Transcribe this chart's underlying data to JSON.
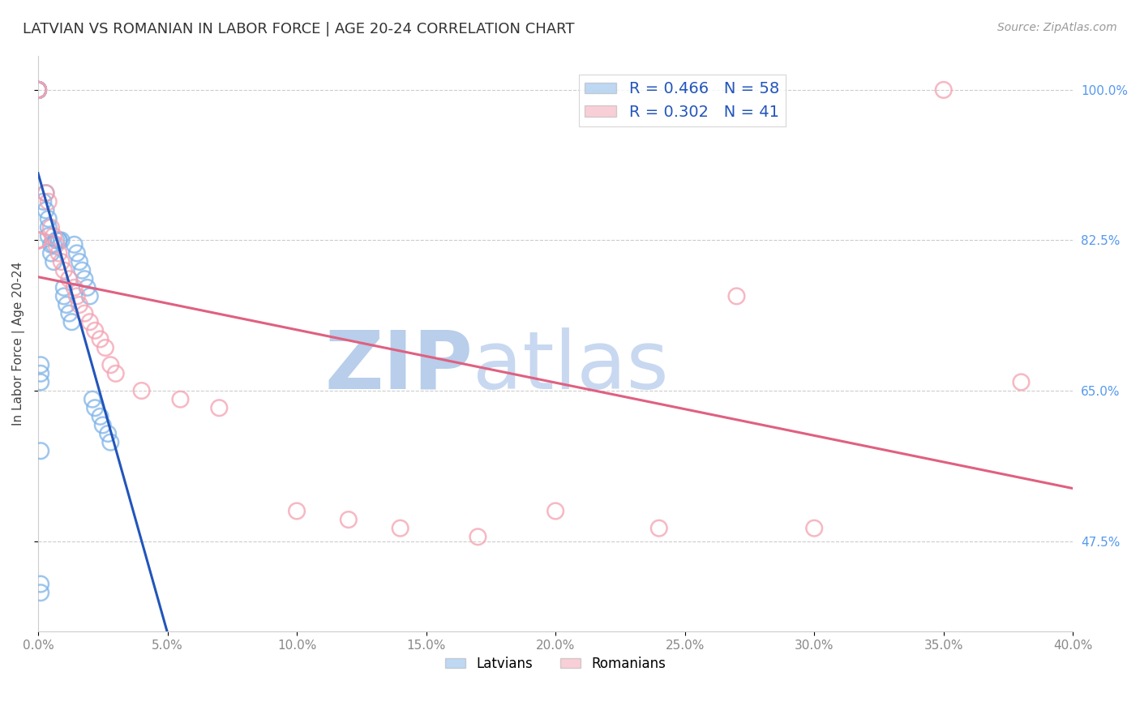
{
  "title": "LATVIAN VS ROMANIAN IN LABOR FORCE | AGE 20-24 CORRELATION CHART",
  "source_text": "Source: ZipAtlas.com",
  "ylabel": "In Labor Force | Age 20-24",
  "legend_labels": [
    "Latvians",
    "Romanians"
  ],
  "R_latvian": 0.466,
  "N_latvian": 58,
  "R_romanian": 0.302,
  "N_romanian": 41,
  "x_latvian": [
    0.0,
    0.0,
    0.0,
    0.0,
    0.0,
    0.0,
    0.0,
    0.0,
    0.0,
    0.0,
    0.0,
    0.0,
    0.0,
    0.0,
    0.0,
    0.0,
    0.0,
    0.0,
    0.0,
    0.0,
    0.002,
    0.003,
    0.003,
    0.004,
    0.004,
    0.004,
    0.005,
    0.005,
    0.006,
    0.006,
    0.007,
    0.008,
    0.008,
    0.009,
    0.01,
    0.01,
    0.011,
    0.012,
    0.013,
    0.014,
    0.015,
    0.016,
    0.017,
    0.018,
    0.019,
    0.02,
    0.021,
    0.022,
    0.024,
    0.025,
    0.027,
    0.028,
    0.001,
    0.001,
    0.001,
    0.001,
    0.001,
    0.001
  ],
  "y_latvian": [
    1.0,
    1.0,
    1.0,
    1.0,
    1.0,
    1.0,
    1.0,
    1.0,
    1.0,
    1.0,
    1.0,
    1.0,
    1.0,
    1.0,
    1.0,
    1.0,
    1.0,
    1.0,
    1.0,
    1.0,
    0.87,
    0.88,
    0.86,
    0.85,
    0.84,
    0.83,
    0.82,
    0.81,
    0.8,
    0.82,
    0.825,
    0.825,
    0.825,
    0.825,
    0.77,
    0.76,
    0.75,
    0.74,
    0.73,
    0.82,
    0.81,
    0.8,
    0.79,
    0.78,
    0.77,
    0.76,
    0.64,
    0.63,
    0.62,
    0.61,
    0.6,
    0.59,
    0.58,
    0.425,
    0.415,
    0.68,
    0.67,
    0.66
  ],
  "x_romanian": [
    0.0,
    0.0,
    0.0,
    0.0,
    0.0,
    0.0,
    0.0,
    0.0,
    0.0,
    0.003,
    0.004,
    0.005,
    0.006,
    0.007,
    0.008,
    0.009,
    0.01,
    0.012,
    0.014,
    0.015,
    0.016,
    0.018,
    0.02,
    0.022,
    0.024,
    0.026,
    0.028,
    0.03,
    0.04,
    0.055,
    0.07,
    0.1,
    0.12,
    0.14,
    0.17,
    0.2,
    0.24,
    0.27,
    0.3,
    0.35,
    0.38
  ],
  "y_romanian": [
    1.0,
    1.0,
    1.0,
    0.825,
    0.825,
    0.825,
    0.825,
    0.825,
    0.825,
    0.88,
    0.87,
    0.84,
    0.83,
    0.82,
    0.81,
    0.8,
    0.79,
    0.78,
    0.77,
    0.76,
    0.75,
    0.74,
    0.73,
    0.72,
    0.71,
    0.7,
    0.68,
    0.67,
    0.65,
    0.64,
    0.63,
    0.51,
    0.5,
    0.49,
    0.48,
    0.51,
    0.49,
    0.76,
    0.49,
    1.0,
    0.66
  ],
  "xlim": [
    0.0,
    0.4
  ],
  "ylim": [
    0.37,
    1.04
  ],
  "xtick_values": [
    0.0,
    0.05,
    0.1,
    0.15,
    0.2,
    0.25,
    0.3,
    0.35,
    0.4
  ],
  "xtick_labels": [
    "0.0%",
    "5.0%",
    "10.0%",
    "15.0%",
    "20.0%",
    "25.0%",
    "30.0%",
    "35.0%",
    "40.0%"
  ],
  "ytick_values": [
    0.475,
    0.65,
    0.825,
    1.0
  ],
  "ytick_labels": [
    "47.5%",
    "65.0%",
    "82.5%",
    "100.0%"
  ],
  "blue_color": "#7EB3E8",
  "pink_color": "#F4A0B0",
  "trend_blue": "#2255BB",
  "trend_pink": "#E06080",
  "watermark_color": "#D8E8F8",
  "background_color": "#FFFFFF",
  "grid_color": "#CCCCCC",
  "ytick_color": "#5599EE",
  "xtick_color": "#888888"
}
